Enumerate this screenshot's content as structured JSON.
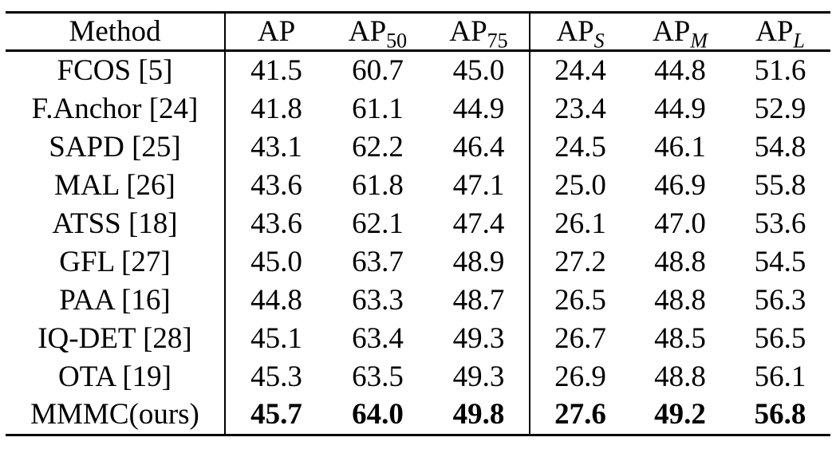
{
  "table": {
    "columns": [
      {
        "id": "method",
        "label": "Method",
        "sub": "",
        "sub_italic": false
      },
      {
        "id": "ap",
        "label": "AP",
        "sub": "",
        "sub_italic": false
      },
      {
        "id": "ap50",
        "label": "AP",
        "sub": "50",
        "sub_italic": false
      },
      {
        "id": "ap75",
        "label": "AP",
        "sub": "75",
        "sub_italic": false
      },
      {
        "id": "ap-s",
        "label": "AP",
        "sub": "S",
        "sub_italic": true
      },
      {
        "id": "ap-m",
        "label": "AP",
        "sub": "M",
        "sub_italic": true
      },
      {
        "id": "ap-l",
        "label": "AP",
        "sub": "L",
        "sub_italic": true
      }
    ],
    "rows": [
      {
        "method": "FCOS [5]",
        "values": [
          "41.5",
          "60.7",
          "45.0",
          "24.4",
          "44.8",
          "51.6"
        ],
        "bold_values": false
      },
      {
        "method": "F.Anchor [24]",
        "values": [
          "41.8",
          "61.1",
          "44.9",
          "23.4",
          "44.9",
          "52.9"
        ],
        "bold_values": false
      },
      {
        "method": "SAPD [25]",
        "values": [
          "43.1",
          "62.2",
          "46.4",
          "24.5",
          "46.1",
          "54.8"
        ],
        "bold_values": false
      },
      {
        "method": "MAL [26]",
        "values": [
          "43.6",
          "61.8",
          "47.1",
          "25.0",
          "46.9",
          "55.8"
        ],
        "bold_values": false
      },
      {
        "method": "ATSS [18]",
        "values": [
          "43.6",
          "62.1",
          "47.4",
          "26.1",
          "47.0",
          "53.6"
        ],
        "bold_values": false
      },
      {
        "method": "GFL [27]",
        "values": [
          "45.0",
          "63.7",
          "48.9",
          "27.2",
          "48.8",
          "54.5"
        ],
        "bold_values": false
      },
      {
        "method": "PAA [16]",
        "values": [
          "44.8",
          "63.3",
          "48.7",
          "26.5",
          "48.8",
          "56.3"
        ],
        "bold_values": false
      },
      {
        "method": "IQ-DET [28]",
        "values": [
          "45.1",
          "63.4",
          "49.3",
          "26.7",
          "48.5",
          "56.5"
        ],
        "bold_values": false
      },
      {
        "method": "OTA [19]",
        "values": [
          "45.3",
          "63.5",
          "49.3",
          "26.9",
          "48.8",
          "56.1"
        ],
        "bold_values": false
      },
      {
        "method": "MMMC(ours)",
        "values": [
          "45.7",
          "64.0",
          "49.8",
          "27.6",
          "49.2",
          "56.8"
        ],
        "bold_values": true
      }
    ],
    "colors": {
      "text": "#000000",
      "background": "#ffffff",
      "rule": "#000000"
    }
  }
}
